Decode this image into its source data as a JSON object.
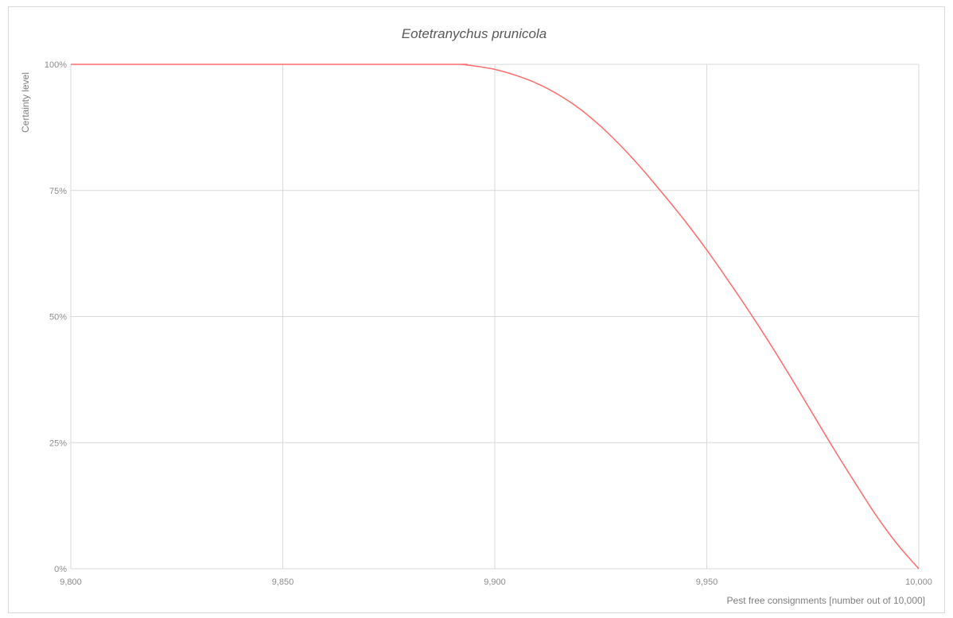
{
  "chart_data": {
    "type": "line",
    "title": "Eotetranychus prunicola",
    "xlabel": "Pest free consignments [number out of 10,000]",
    "ylabel": "Certainty level",
    "xlim": [
      9800,
      10000
    ],
    "ylim": [
      0,
      1
    ],
    "x_ticks": [
      "9,800",
      "9,850",
      "9,900",
      "9,950",
      "10,000"
    ],
    "y_ticks": [
      "0%",
      "25%",
      "50%",
      "75%",
      "100%"
    ],
    "grid": true,
    "legend": "none",
    "series": [
      {
        "color": "#ff6b6b",
        "x": [
          9800,
          9850,
          9890,
          9892,
          9895,
          9900,
          9905,
          9910,
          9915,
          9920,
          9925,
          9930,
          9935,
          9940,
          9945,
          9950,
          9955,
          9960,
          9965,
          9970,
          9975,
          9980,
          9985,
          9990,
          9995,
          10000
        ],
        "y": [
          1.0,
          1.0,
          1.0,
          1.0,
          0.997,
          0.99,
          0.978,
          0.962,
          0.94,
          0.912,
          0.877,
          0.836,
          0.79,
          0.74,
          0.688,
          0.632,
          0.572,
          0.51,
          0.445,
          0.377,
          0.307,
          0.237,
          0.17,
          0.105,
          0.048,
          0.0
        ]
      }
    ]
  }
}
